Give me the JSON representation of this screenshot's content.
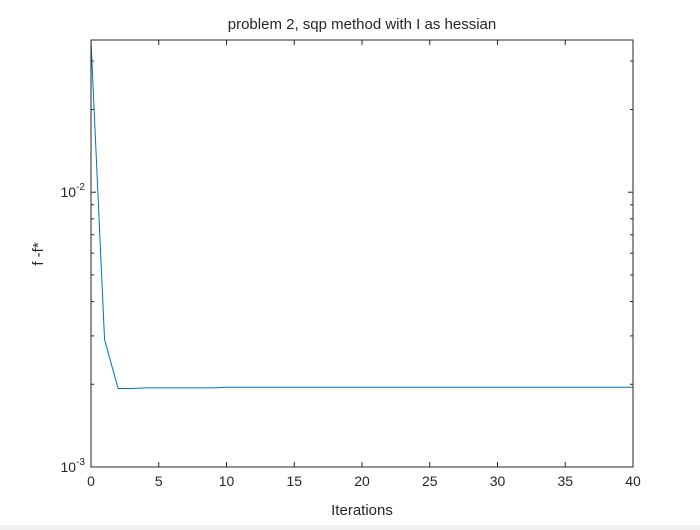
{
  "chart_data": {
    "type": "line",
    "title": "problem 2, sqp method with I as hessian",
    "xlabel": "Iterations",
    "ylabel": "f -f*",
    "xlim": [
      0,
      40
    ],
    "ylim": [
      0.001,
      0.0358
    ],
    "yscale": "log",
    "xticks": [
      0,
      5,
      10,
      15,
      20,
      25,
      30,
      35,
      40
    ],
    "yticks": [
      {
        "value": 0.001,
        "base": "10",
        "exp": "-3"
      },
      {
        "value": 0.01,
        "base": "10",
        "exp": "-2"
      }
    ],
    "grid": false,
    "legend": "none",
    "series": [
      {
        "color": "#0072bd",
        "x": [
          0,
          1,
          2,
          3,
          4,
          5,
          6,
          7,
          8,
          9,
          10,
          11,
          12,
          13,
          14,
          15,
          16,
          17,
          18,
          19,
          20,
          21,
          22,
          23,
          24,
          25,
          26,
          27,
          28,
          29,
          30,
          31,
          32,
          33,
          34,
          35,
          36,
          37,
          38,
          39,
          40
        ],
        "values": [
          0.0355,
          0.00291,
          0.00193,
          0.00193,
          0.00194,
          0.00194,
          0.00194,
          0.00194,
          0.00194,
          0.00194,
          0.00195,
          0.00195,
          0.00195,
          0.00195,
          0.00195,
          0.00195,
          0.00195,
          0.00195,
          0.00195,
          0.00195,
          0.00195,
          0.00195,
          0.00195,
          0.00195,
          0.00195,
          0.00195,
          0.00195,
          0.00195,
          0.00195,
          0.00195,
          0.00195,
          0.00195,
          0.00195,
          0.00195,
          0.00195,
          0.00195,
          0.00195,
          0.00195,
          0.00195,
          0.00195,
          0.00195
        ]
      }
    ]
  }
}
